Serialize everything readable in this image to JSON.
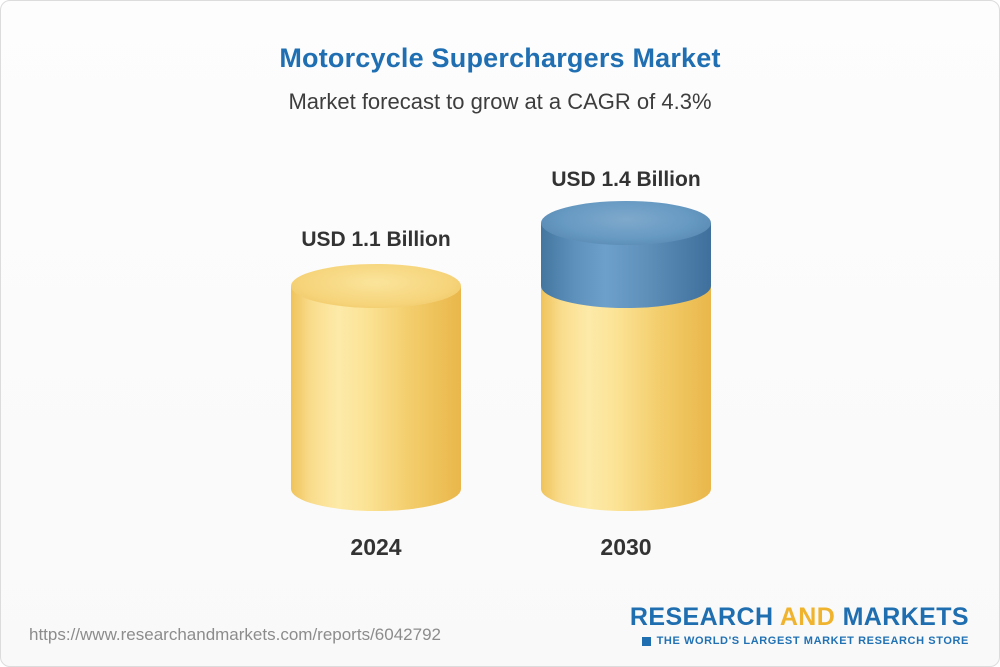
{
  "header": {
    "title": "Motorcycle Superchargers Market",
    "subtitle": "Market forecast to grow at a CAGR of 4.3%"
  },
  "chart_data": {
    "type": "bar",
    "title": "Motorcycle Superchargers Market",
    "subtitle": "Market forecast to grow at a CAGR of 4.3%",
    "cagr_percent": 4.3,
    "unit": "USD Billion",
    "categories": [
      "2024",
      "2030"
    ],
    "values": [
      1.1,
      1.4
    ],
    "bars": [
      {
        "year": "2024",
        "label": "USD 1.1 Billion",
        "value": 1.1,
        "color": "#f3cd6b"
      },
      {
        "year": "2030",
        "label": "USD 1.4 Billion",
        "value": 1.4,
        "base_color": "#f3cd6b",
        "growth_color": "#5e90ba"
      }
    ],
    "ylim": [
      0,
      1.4
    ],
    "grid": false,
    "legend_position": "none"
  },
  "footer": {
    "url": "https://www.researchandmarkets.com/reports/6042792",
    "logo": {
      "part1": "RESEARCH",
      "part2": "AND",
      "part3": "MARKETS",
      "tagline": "THE WORLD'S LARGEST MARKET RESEARCH STORE"
    }
  },
  "colors": {
    "title_blue": "#1f6fb2",
    "bar_yellow": "#f3cd6b",
    "bar_blue": "#5e90ba",
    "logo_blue": "#1f6eb0",
    "logo_gold": "#f0b32e",
    "text_dark": "#333333",
    "url_gray": "#8c8c8c"
  }
}
